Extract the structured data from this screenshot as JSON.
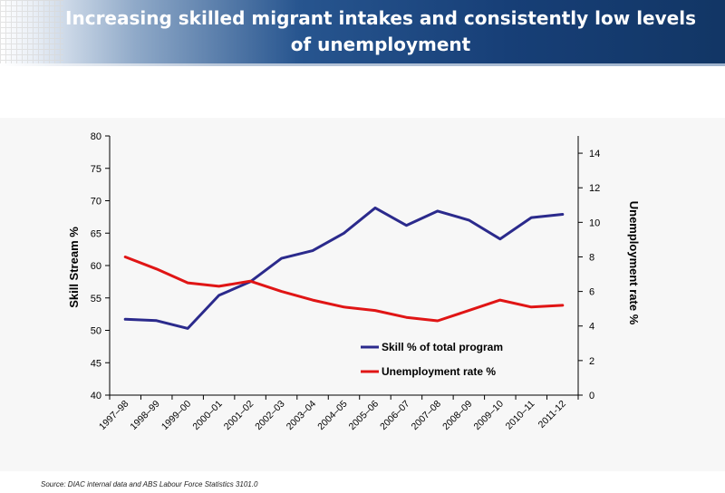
{
  "header": {
    "title_line1": "Increasing skilled migrant intakes and consistently low levels",
    "title_line2": "of unemployment"
  },
  "footer": {
    "source": "Source: DIAC internal data and ABS Labour Force Statistics 3101.0"
  },
  "colors": {
    "skill": "#2b2a8c",
    "unemployment": "#e01515",
    "axis": "#000000"
  },
  "chart_data": {
    "type": "line",
    "categories": [
      "1997–98",
      "1998–99",
      "1999–00",
      "2000–01",
      "2001–02",
      "2002–03",
      "2003–04",
      "2004–05",
      "2005–06",
      "2006–07",
      "2007–08",
      "2008–09",
      "2009–10",
      "2010–11",
      "2011-12"
    ],
    "series": [
      {
        "name": "Skill % of total program",
        "axis": "left",
        "values": [
          51.7,
          51.5,
          50.3,
          55.4,
          57.5,
          61.1,
          62.3,
          65.0,
          68.9,
          66.2,
          68.4,
          67.0,
          64.1,
          67.4,
          67.9
        ]
      },
      {
        "name": "Unemployment rate %",
        "axis": "right",
        "values": [
          8.0,
          7.3,
          6.5,
          6.3,
          6.6,
          6.0,
          5.5,
          5.1,
          4.9,
          4.5,
          4.3,
          4.9,
          5.5,
          5.1,
          5.2
        ]
      }
    ],
    "ylabel": "Skill Stream %",
    "ylim": [
      40,
      80
    ],
    "yticks": [
      "40",
      "45",
      "50",
      "55",
      "60",
      "65",
      "70",
      "75",
      "80"
    ],
    "y2label": "Unemployment rate %",
    "y2lim": [
      0,
      15
    ],
    "y2ticks": [
      "0",
      "2",
      "4",
      "6",
      "8",
      "10",
      "12",
      "14"
    ],
    "grid": false,
    "legend": "lower-center inside plot"
  }
}
